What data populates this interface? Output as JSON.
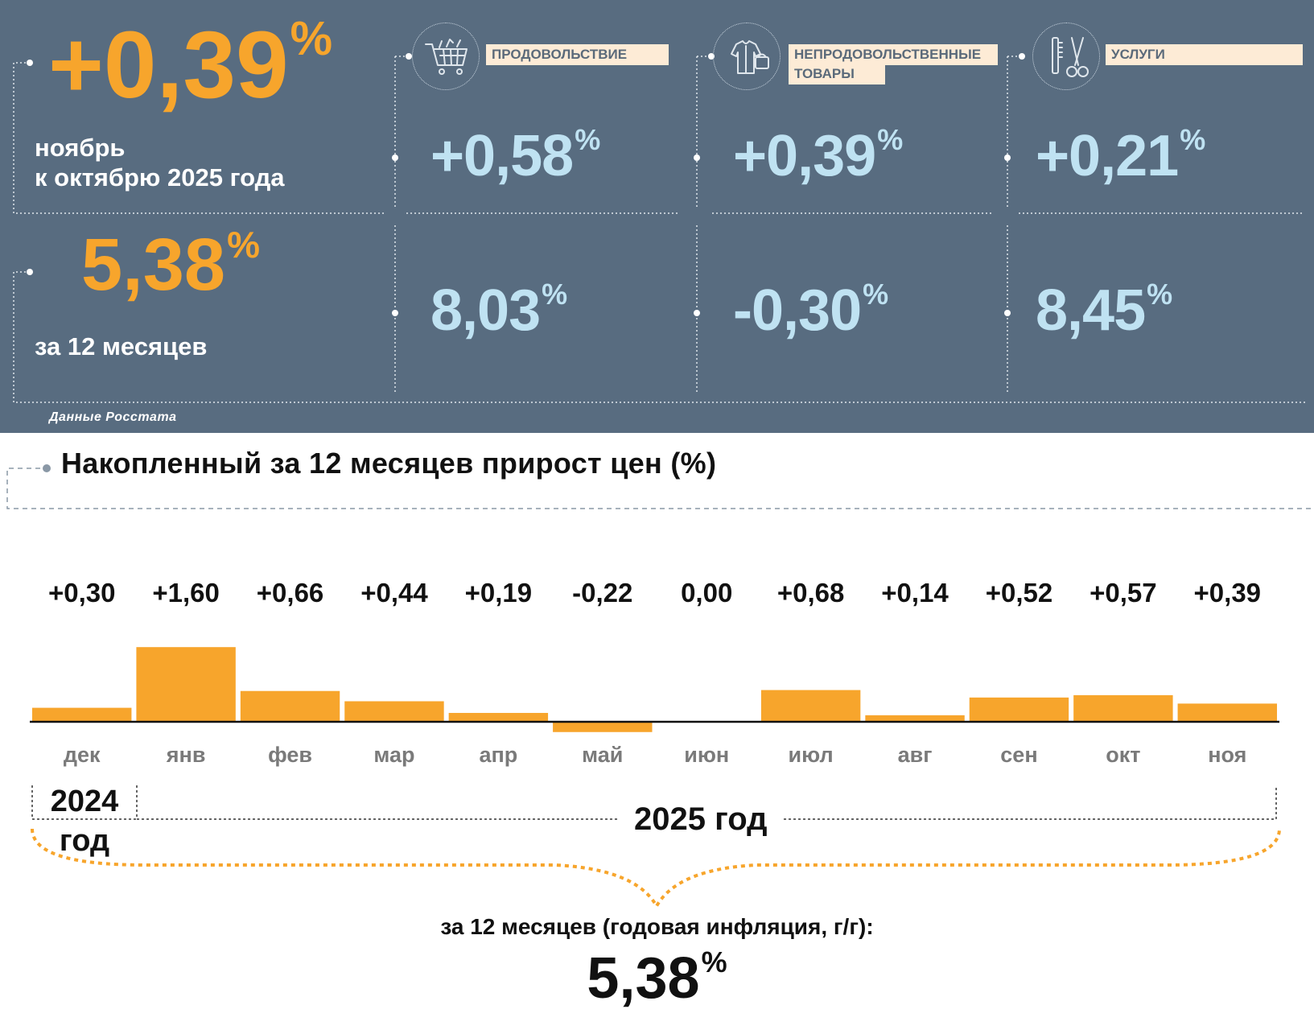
{
  "summary": {
    "monthly": {
      "value": "+0,39",
      "unit": "%",
      "label_line1": "ноябрь",
      "label_line2": "к октябрю 2025 года"
    },
    "yearly": {
      "value": "5,38",
      "unit": "%",
      "label": "за 12 месяцев"
    },
    "source": "Данные Росстата"
  },
  "categories": [
    {
      "label_line1": "ПРОДОВОЛЬСТВИЕ",
      "label_line2": "",
      "icon": "shopping-cart-icon",
      "monthly": "+0,58",
      "yearly": "8,03",
      "unit": "%"
    },
    {
      "label_line1": "НЕПРОДОВОЛЬСТВЕННЫЕ",
      "label_line2": "ТОВАРЫ",
      "icon": "clothing-bag-icon",
      "monthly": "+0,39",
      "yearly": "-0,30",
      "unit": "%"
    },
    {
      "label_line1": "УСЛУГИ",
      "label_line2": "",
      "icon": "comb-scissors-icon",
      "monthly": "+0,21",
      "yearly": "8,45",
      "unit": "%"
    }
  ],
  "colors": {
    "panel_bg": "#586c80",
    "orange": "#f7a52c",
    "light_blue": "#bfe2f2",
    "label_bg": "#fdebd6",
    "bar": "#f7a52c"
  },
  "chart_data": {
    "type": "bar",
    "title": "Накопленный за 12 месяцев прирост цен (%)",
    "categories": [
      "дек",
      "янв",
      "фев",
      "мар",
      "апр",
      "май",
      "июн",
      "июл",
      "авг",
      "сен",
      "окт",
      "ноя"
    ],
    "values": [
      0.3,
      1.6,
      0.66,
      0.44,
      0.19,
      -0.22,
      0.0,
      0.68,
      0.14,
      0.52,
      0.57,
      0.39
    ],
    "value_labels": [
      "+0,30",
      "+1,60",
      "+0,66",
      "+0,44",
      "+0,19",
      "-0,22",
      "0,00",
      "+0,68",
      "+0,14",
      "+0,52",
      "+0,57",
      "+0,39"
    ],
    "year_groups": [
      {
        "label_line1": "2024",
        "label_line2": "год",
        "categories": [
          "дек"
        ]
      },
      {
        "label": "2025 год",
        "categories": [
          "янв",
          "фев",
          "мар",
          "апр",
          "май",
          "июн",
          "июл",
          "авг",
          "сен",
          "окт",
          "ноя"
        ]
      }
    ],
    "grid": false
  },
  "result": {
    "label": "за 12 месяцев (годовая инфляция, г/г):",
    "value": "5,38",
    "unit": "%"
  }
}
